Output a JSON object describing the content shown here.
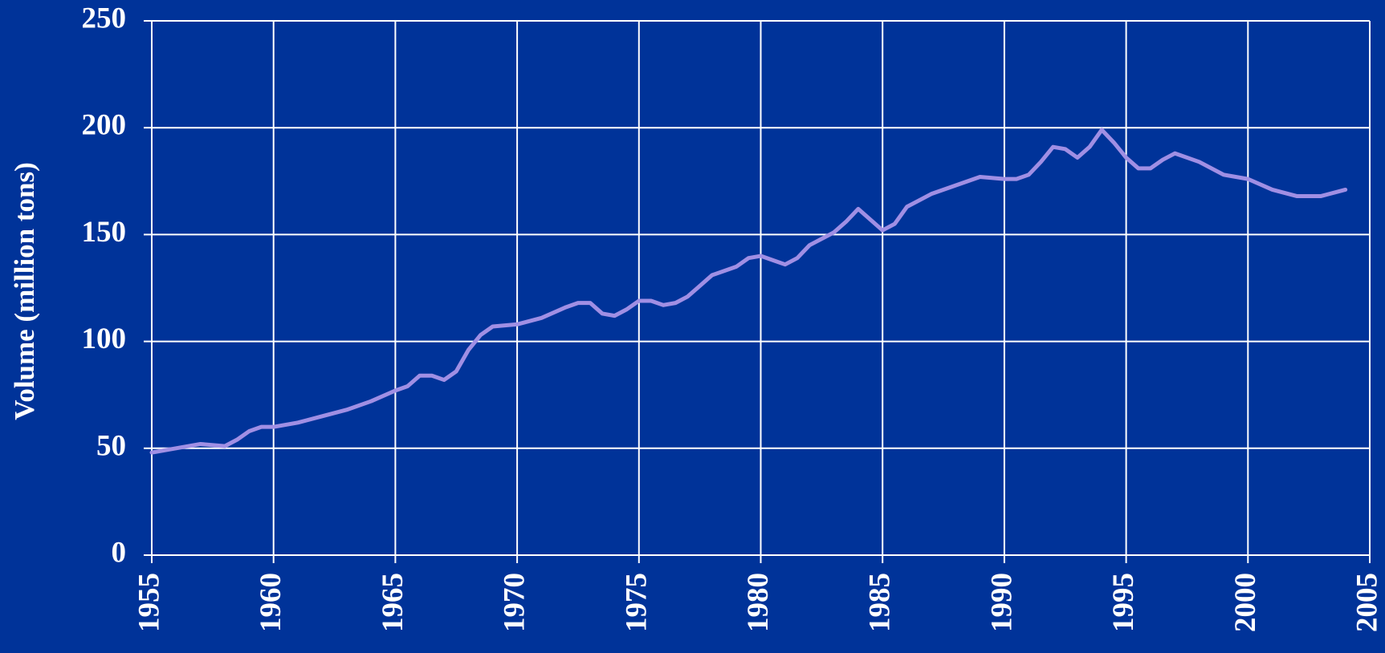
{
  "chart_data": {
    "type": "line",
    "ylabel": "Volume (million tons)",
    "x": [
      1955,
      1956,
      1957,
      1958,
      1958.5,
      1959,
      1959.5,
      1960,
      1961,
      1962,
      1963,
      1964,
      1965,
      1965.5,
      1966,
      1966.5,
      1967,
      1967.5,
      1968,
      1968.5,
      1969,
      1970,
      1971,
      1972,
      1972.5,
      1973,
      1973.5,
      1974,
      1974.5,
      1975,
      1975.5,
      1976,
      1976.5,
      1977,
      1977.5,
      1978,
      1979,
      1979.5,
      1980,
      1980.5,
      1981,
      1981.5,
      1982,
      1983,
      1983.5,
      1984,
      1984.5,
      1985,
      1985.5,
      1986,
      1986.5,
      1987,
      1988,
      1989,
      1990,
      1990.5,
      1991,
      1991.5,
      1992,
      1992.5,
      1993,
      1993.5,
      1994,
      1994.5,
      1995,
      1995.5,
      1996,
      1996.5,
      1997,
      1998,
      1999,
      2000,
      2001,
      2002,
      2003,
      2004
    ],
    "series": [
      {
        "name": "Volume",
        "color": "#a08fe4",
        "values": [
          48,
          50,
          52,
          51,
          54,
          58,
          60,
          60,
          62,
          65,
          68,
          72,
          77,
          79,
          84,
          84,
          82,
          86,
          96,
          103,
          107,
          108,
          111,
          116,
          118,
          118,
          113,
          112,
          115,
          119,
          119,
          117,
          118,
          121,
          126,
          131,
          135,
          139,
          140,
          138,
          136,
          139,
          145,
          151,
          156,
          162,
          157,
          152,
          155,
          163,
          166,
          169,
          173,
          177,
          176,
          176,
          178,
          184,
          191,
          190,
          186,
          191,
          199,
          193,
          186,
          181,
          181,
          185,
          188,
          184,
          178,
          176,
          171,
          168,
          168,
          171
        ]
      }
    ],
    "xlim": [
      1955,
      2005
    ],
    "xticks": [
      1955,
      1960,
      1965,
      1970,
      1975,
      1980,
      1985,
      1990,
      1995,
      2000,
      2005
    ],
    "ylim": [
      0,
      250
    ],
    "yticks": [
      0,
      50,
      100,
      150,
      200,
      250
    ],
    "grid": true,
    "background": "#003399",
    "grid_color": "#ffffff"
  }
}
